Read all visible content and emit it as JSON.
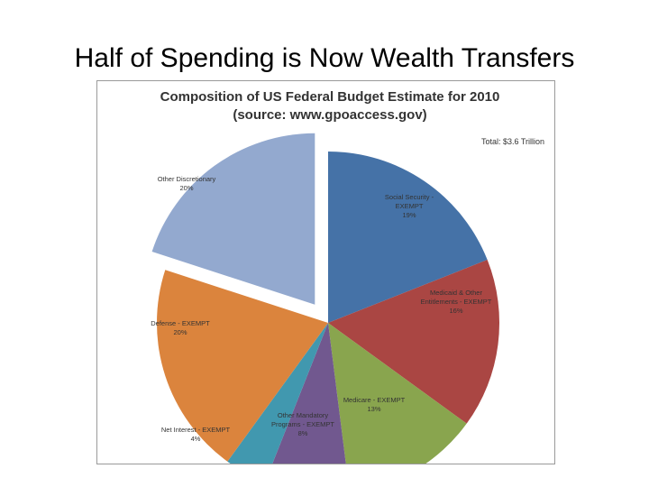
{
  "slide": {
    "title": "Half of Spending is Now Wealth Transfers"
  },
  "chart_data": {
    "type": "pie",
    "title_lines": [
      "Composition of US Federal Budget Estimate for 2010",
      "(source: www.gpoaccess.gov)"
    ],
    "total_label": "Total: $3.6 Trillion",
    "slices": [
      {
        "label_lines": [
          "Social Security -",
          "EXEMPT",
          "19%"
        ],
        "value": 19,
        "color": "#4572A7",
        "exploded": false
      },
      {
        "label_lines": [
          "Medicaid & Other",
          "Entitlements - EXEMPT",
          "16%"
        ],
        "value": 16,
        "color": "#AA4643",
        "exploded": false
      },
      {
        "label_lines": [
          "Medicare - EXEMPT",
          "13%"
        ],
        "value": 13,
        "color": "#89A54E",
        "exploded": false
      },
      {
        "label_lines": [
          "Other Mandatory",
          "Programs - EXEMPT",
          "8%"
        ],
        "value": 8,
        "color": "#71588F",
        "exploded": false
      },
      {
        "label_lines": [
          "Net Interest - EXEMPT",
          "4%"
        ],
        "value": 4,
        "color": "#4198AF",
        "exploded": false
      },
      {
        "label_lines": [
          "Defense - EXEMPT",
          "20%"
        ],
        "value": 20,
        "color": "#DB843D",
        "exploded": false
      },
      {
        "label_lines": [
          "Other Discretionary",
          "20%"
        ],
        "value": 20,
        "color": "#93A9CF",
        "exploded": true
      }
    ]
  }
}
